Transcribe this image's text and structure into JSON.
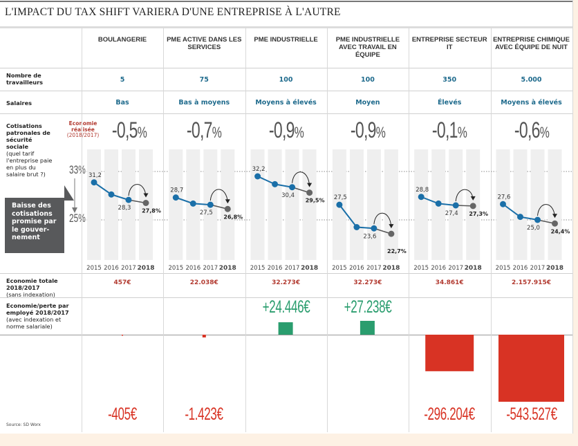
{
  "title": "L'IMPACT DU TAX SHIFT VARIERA D'UNE ENTREPRISE À L'AUTRE",
  "row_labels": {
    "workers": "Nombre de travailleurs",
    "wages": "Salaires",
    "contrib_title": "Cotisations patronales de sécurité sociale",
    "contrib_sub": "(quel tarif l'entreprise paie en plus du salaire brut ?)",
    "economy_note_1": "Economie",
    "economy_note_2": "réalisée",
    "economy_note_3": "(2018/2017)",
    "total_title": "Economie totale 2018/2017",
    "total_sub": "(sans indexation)",
    "per_emp_title": "Economie/perte par employé 2018/2017",
    "per_emp_sub": "(avec indexation et norme salariale)"
  },
  "callout": "Baisse des cotisations promise par le gouver-nement",
  "source": "Source: SD Worx",
  "colors": {
    "line": "#1a6fa8",
    "point_2018": "#666666",
    "green": "#2a9d6e",
    "red": "#d83324",
    "dark_red": "#b23a30",
    "teal": "#1e6a8c"
  },
  "chart_data": {
    "type": "line",
    "title": "L'IMPACT DU TAX SHIFT VARIERA D'UNE ENTREPRISE À L'AUTRE",
    "ylabel": "Cotisations patronales (%)",
    "yticks": [
      "33%",
      "25%"
    ],
    "ytick_values": [
      33,
      25
    ],
    "ylim": [
      20,
      36
    ],
    "x": [
      "2015",
      "2016",
      "2017",
      "2018"
    ],
    "series": [
      {
        "name": "BOULANGERIE",
        "workers": "5",
        "wages": "Bas",
        "saving_pct": "-0,5",
        "values": [
          31.2,
          29.2,
          28.3,
          27.8
        ],
        "labels": [
          "31,2",
          "",
          "28,3",
          "27,8%"
        ],
        "total_saving": "457€",
        "per_employee": -405,
        "per_employee_label": "-405€"
      },
      {
        "name": "PME ACTIVE DANS LES SERVICES",
        "workers": "75",
        "wages": "Bas à moyens",
        "saving_pct": "-0,7",
        "values": [
          28.7,
          27.7,
          27.5,
          26.8
        ],
        "labels": [
          "28,7",
          "",
          "27,5",
          "26,8%"
        ],
        "total_saving": "22.038€",
        "per_employee": -1423,
        "per_employee_label": "-1.423€"
      },
      {
        "name": "PME INDUSTRIELLE",
        "workers": "100",
        "wages": "Moyens à élevés",
        "saving_pct": "-0,9",
        "values": [
          32.2,
          30.9,
          30.4,
          29.5
        ],
        "labels": [
          "32,2",
          "",
          "30,4",
          "29,5%"
        ],
        "total_saving": "32.273€",
        "per_employee": 24446,
        "per_employee_label": "+24.446€"
      },
      {
        "name": "PME INDUSTRIELLE AVEC TRAVAIL EN ÉQUIPE",
        "workers": "100",
        "wages": "Moyen",
        "saving_pct": "-0,9",
        "values": [
          27.5,
          23.8,
          23.6,
          22.7
        ],
        "labels": [
          "27,5",
          "",
          "23,6",
          "22,7%"
        ],
        "total_saving": "32.273€",
        "per_employee": 27238,
        "per_employee_label": "+27.238€"
      },
      {
        "name": "ENTREPRISE SECTEUR IT",
        "workers": "350",
        "wages": "Élevés",
        "saving_pct": "-0,1",
        "values": [
          28.8,
          27.7,
          27.4,
          27.3
        ],
        "labels": [
          "28,8",
          "",
          "27,4",
          "27,3%"
        ],
        "total_saving": "34.861€",
        "per_employee": -296204,
        "per_employee_label": "-296.204€"
      },
      {
        "name": "ENTREPRISE CHIMIQUE AVEC ÉQUIPE DE NUIT",
        "workers": "5.000",
        "wages": "Moyens à élevés",
        "saving_pct": "-0,6",
        "values": [
          27.6,
          25.5,
          25.0,
          24.4
        ],
        "labels": [
          "27,6",
          "",
          "25,0",
          "24,4%"
        ],
        "total_saving": "2.157.915€",
        "per_employee": -543527,
        "per_employee_label": "-543.527€"
      }
    ]
  }
}
